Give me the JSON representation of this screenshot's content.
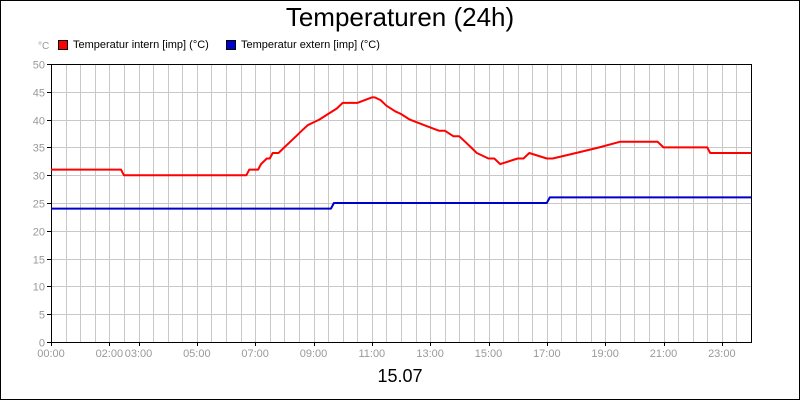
{
  "chart_data": {
    "type": "line",
    "title": "Temperaturen (24h)",
    "xlabel": "15.07",
    "ylabel": "°C",
    "xlim": [
      0,
      24
    ],
    "ylim": [
      0,
      50
    ],
    "y_ticks": [
      0,
      5,
      10,
      15,
      20,
      25,
      30,
      35,
      40,
      45,
      50
    ],
    "x_ticks": [
      {
        "h": 0,
        "label": "00:00"
      },
      {
        "h": 2,
        "label": "02:00"
      },
      {
        "h": 3,
        "label": "03:00"
      },
      {
        "h": 5,
        "label": "05:00"
      },
      {
        "h": 7,
        "label": "07:00"
      },
      {
        "h": 9,
        "label": "09:00"
      },
      {
        "h": 11,
        "label": "11:00"
      },
      {
        "h": 13,
        "label": "13:00"
      },
      {
        "h": 15,
        "label": "15:00"
      },
      {
        "h": 17,
        "label": "17:00"
      },
      {
        "h": 19,
        "label": "19:00"
      },
      {
        "h": 21,
        "label": "21:00"
      },
      {
        "h": 23,
        "label": "23:00"
      }
    ],
    "grid": true,
    "legend_position": "top-left",
    "series": [
      {
        "name": "Temperatur intern [imp] (°C)",
        "color": "#ff0000",
        "x": [
          0,
          2.4,
          2.5,
          6.7,
          6.8,
          7.1,
          7.2,
          7.3,
          7.4,
          7.5,
          7.6,
          7.8,
          8.0,
          8.2,
          8.4,
          8.6,
          8.8,
          9.0,
          9.2,
          9.5,
          9.8,
          10.0,
          10.5,
          11.0,
          11.1,
          11.3,
          11.5,
          11.8,
          12.0,
          12.3,
          12.8,
          13.3,
          13.5,
          13.8,
          14.0,
          14.2,
          14.4,
          14.6,
          15.0,
          15.2,
          15.4,
          16.0,
          16.2,
          16.4,
          17.0,
          17.2,
          18.0,
          18.8,
          19.5,
          20.8,
          21.0,
          22.5,
          22.6,
          24.0
        ],
        "y": [
          31,
          31,
          30,
          30,
          31,
          31,
          32,
          32.5,
          33,
          33,
          34,
          34,
          35,
          36,
          37,
          38,
          39,
          39.5,
          40,
          41,
          42,
          43,
          43,
          44,
          44,
          43.5,
          42.5,
          41.5,
          41,
          40,
          39,
          38,
          38,
          37,
          37,
          36,
          35,
          34,
          33,
          33,
          32,
          33,
          33,
          34,
          33,
          33,
          34,
          35,
          36,
          36,
          35,
          35,
          34,
          34
        ]
      },
      {
        "name": "Temperatur extern [imp] (°C)",
        "color": "#0000cc",
        "x": [
          0,
          9.6,
          9.7,
          17.0,
          17.1,
          24.0
        ],
        "y": [
          24,
          24,
          25,
          25,
          26,
          26
        ]
      }
    ]
  }
}
